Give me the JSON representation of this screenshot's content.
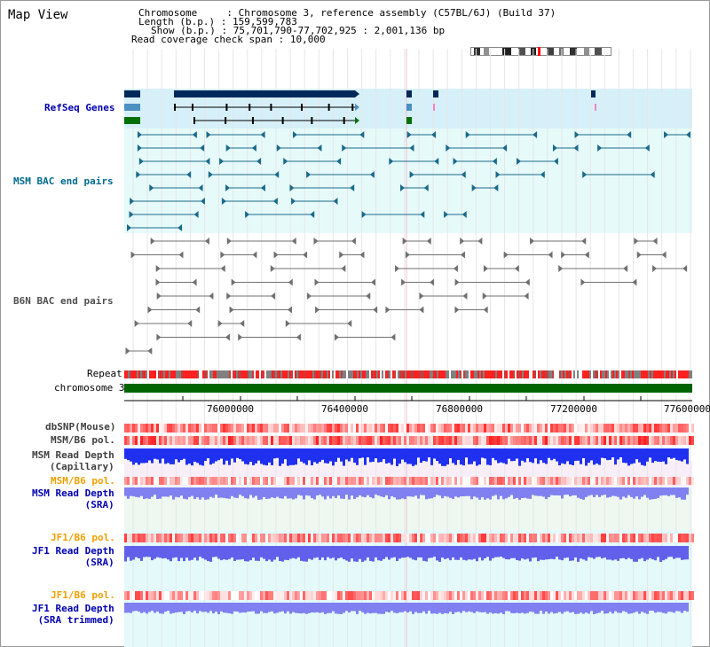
{
  "window": {
    "title": "Map View"
  },
  "info": {
    "chromosome_label": "Chromosome",
    "chromosome_value": "Chromosome 3, reference assembly (C57BL/6J) (Build 37)",
    "length_label": "Length (b.p.)",
    "length_value": "159,599,783",
    "show_label": "Show (b.p.)",
    "show_value": "75,701,790-77,702,925 : 2,001,136 bp",
    "coverage_label": "Read coverage check span",
    "coverage_value": "10,000"
  },
  "tracks": {
    "refseq": "RefSeq Genes",
    "msm_bac": "MSM BAC end pairs",
    "b6n_bac": "B6N BAC end pairs",
    "repeat": "Repeat",
    "chromosome": "chromosome 3",
    "dbsnp": "dbSNP(Mouse)",
    "msm_b6_pol": "MSM/B6 pol.",
    "msm_depth_cap_1": "MSM Read Depth",
    "msm_depth_cap_2": "(Capillary)",
    "msm_b6_pol_2": "MSM/B6 pol.",
    "msm_depth_sra_1": "MSM Read Depth",
    "msm_depth_sra_2": "(SRA)",
    "jf1_b6_pol": "JF1/B6 pol.",
    "jf1_depth_sra_1": "JF1 Read Depth",
    "jf1_depth_sra_2": "(SRA)",
    "jf1_b6_pol_2": "JF1/B6 pol.",
    "jf1_depth_trim_1": "JF1 Read Depth",
    "jf1_depth_trim_2": "(SRA trimmed)"
  },
  "axis": {
    "ticks": [
      "76000000",
      "76400000",
      "76800000",
      "77200000",
      "77600000"
    ]
  },
  "colors": {
    "refseq_band": "#d6f0fa",
    "bac_band": "#e6fafa",
    "gene_dark": "#00285a",
    "gene_light": "#4a90c0",
    "gene_green": "#007000",
    "chromosome_bar": "#006400",
    "pol_red": "#ff0000",
    "depth_blue": "#2020ff"
  }
}
